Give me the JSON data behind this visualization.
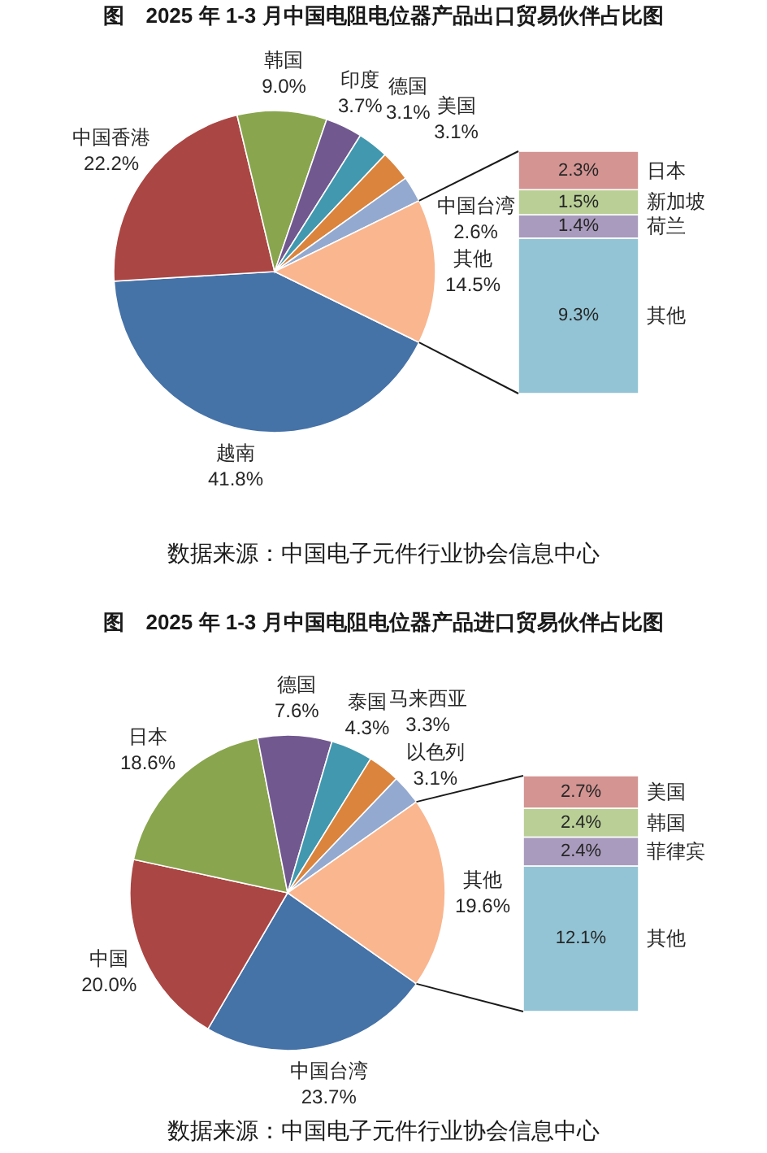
{
  "chart_data": [
    {
      "type": "pie",
      "title": "图　2025 年 1-3 月中国电阻电位器产品出口贸易伙伴占比图",
      "categories": [
        "越南",
        "中国香港",
        "韩国",
        "印度",
        "德国",
        "美国",
        "中国台湾",
        "其他"
      ],
      "values": [
        41.8,
        22.2,
        9.0,
        3.7,
        3.1,
        3.1,
        2.6,
        14.5
      ],
      "colors": [
        "#4572a7",
        "#aa4643",
        "#89a54e",
        "#71588f",
        "#4198af",
        "#db843d",
        "#93a9cf",
        "#f9b68f"
      ],
      "value_labels": [
        "41.8%",
        "22.2%",
        "9.0%",
        "3.7%",
        "3.1%",
        "3.1%",
        "2.6%",
        "14.5%"
      ],
      "annotations": [
        "数据来源：中国电子元件行业协会信息中心"
      ]
    },
    {
      "type": "bar",
      "stacked": true,
      "categories": [
        null
      ],
      "series": [
        {
          "name": "其他",
          "color": "#93c4d5",
          "values": [
            9.3
          ],
          "value_labels": [
            "9.3%"
          ]
        },
        {
          "name": "荷兰",
          "color": "#a99bbd",
          "values": [
            1.4
          ],
          "value_labels": [
            "1.4%"
          ]
        },
        {
          "name": "新加坡",
          "color": "#b9cf96",
          "values": [
            1.5
          ],
          "value_labels": [
            "1.5%"
          ]
        },
        {
          "name": "日本",
          "color": "#d39492",
          "values": [
            2.3
          ],
          "value_labels": [
            "2.3%"
          ]
        }
      ]
    },
    {
      "type": "pie",
      "title": "图　2025 年 1-3 月中国电阻电位器产品进口贸易伙伴占比图",
      "categories": [
        "中国台湾",
        "中国",
        "日本",
        "德国",
        "泰国",
        "马来西亚",
        "以色列",
        "其他"
      ],
      "values": [
        23.7,
        20.0,
        18.6,
        7.6,
        4.3,
        3.3,
        3.1,
        19.6
      ],
      "colors": [
        "#4572a7",
        "#aa4643",
        "#89a54e",
        "#71588f",
        "#4198af",
        "#db843d",
        "#93a9cf",
        "#f9b68f"
      ],
      "value_labels": [
        "23.7%",
        "20.0%",
        "18.6%",
        "7.6%",
        "4.3%",
        "3.3%",
        "3.1%",
        "19.6%"
      ],
      "annotations": [
        "数据来源：中国电子元件行业协会信息中心"
      ]
    },
    {
      "type": "bar",
      "stacked": true,
      "categories": [
        null
      ],
      "series": [
        {
          "name": "其他",
          "color": "#93c4d5",
          "values": [
            12.1
          ],
          "value_labels": [
            "12.1%"
          ]
        },
        {
          "name": "菲律宾",
          "color": "#a99bbd",
          "values": [
            2.4
          ],
          "value_labels": [
            "2.4%"
          ]
        },
        {
          "name": "韩国",
          "color": "#b9cf96",
          "values": [
            2.4
          ],
          "value_labels": [
            "2.4%"
          ]
        },
        {
          "name": "美国",
          "color": "#d39492",
          "values": [
            2.7
          ],
          "value_labels": [
            "2.7%"
          ]
        }
      ]
    }
  ]
}
